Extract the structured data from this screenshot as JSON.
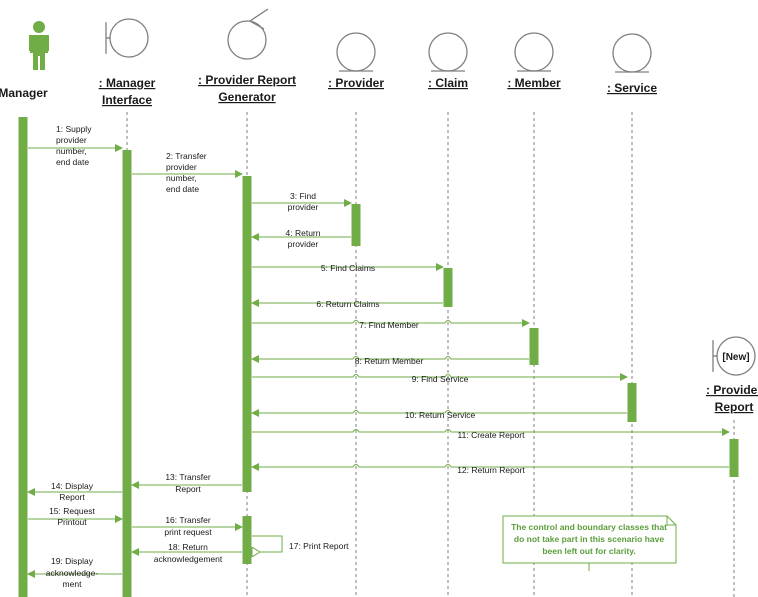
{
  "participants": [
    {
      "id": "manager",
      "kind": "actor",
      "lines": [
        "Manager"
      ],
      "underline": false
    },
    {
      "id": "manager-interface",
      "kind": "boundary",
      "lines": [
        ": Manager",
        "Interface"
      ],
      "underline": true
    },
    {
      "id": "provider-report-generator",
      "kind": "control",
      "lines": [
        ": Provider Report",
        "Generator"
      ],
      "underline": true
    },
    {
      "id": "provider",
      "kind": "entity",
      "lines": [
        ": Provider"
      ],
      "underline": true
    },
    {
      "id": "claim",
      "kind": "entity",
      "lines": [
        ": Claim"
      ],
      "underline": true
    },
    {
      "id": "member",
      "kind": "entity",
      "lines": [
        ": Member"
      ],
      "underline": true
    },
    {
      "id": "service",
      "kind": "entity",
      "lines": [
        ": Service"
      ],
      "underline": true
    },
    {
      "id": "provider-report",
      "kind": "boundary-new",
      "lines": [
        ": Provider",
        "Report"
      ],
      "underline": true,
      "tag": "[New]"
    }
  ],
  "messages": [
    {
      "n": 1,
      "lines": [
        "1: Supply",
        "provider",
        "number,",
        "end date"
      ]
    },
    {
      "n": 2,
      "lines": [
        "2: Transfer",
        "provider",
        "number,",
        "end date"
      ]
    },
    {
      "n": 3,
      "lines": [
        "3: Find",
        "provider"
      ]
    },
    {
      "n": 4,
      "lines": [
        "4: Return",
        "provider"
      ]
    },
    {
      "n": 5,
      "lines": [
        "5: Find Claims"
      ]
    },
    {
      "n": 6,
      "lines": [
        "6: Return Claims"
      ]
    },
    {
      "n": 7,
      "lines": [
        "7: Find Member"
      ]
    },
    {
      "n": 8,
      "lines": [
        "8: Return Member"
      ]
    },
    {
      "n": 9,
      "lines": [
        "9: Find Service"
      ]
    },
    {
      "n": 10,
      "lines": [
        "10: Return Service"
      ]
    },
    {
      "n": 11,
      "lines": [
        "11: Create Report"
      ]
    },
    {
      "n": 12,
      "lines": [
        "12: Return Report"
      ]
    },
    {
      "n": 13,
      "lines": [
        "13: Transfer",
        "Report"
      ]
    },
    {
      "n": 14,
      "lines": [
        "14: Display",
        "Report"
      ]
    },
    {
      "n": 15,
      "lines": [
        "15: Request",
        "Printout"
      ]
    },
    {
      "n": 16,
      "lines": [
        "16: Transfer",
        "print request"
      ]
    },
    {
      "n": 17,
      "lines": [
        "17: Print Report"
      ]
    },
    {
      "n": 18,
      "lines": [
        "18: Return",
        "acknowledgement"
      ]
    },
    {
      "n": 19,
      "lines": [
        "19: Display",
        "acknowledge-",
        "ment"
      ]
    }
  ],
  "note": {
    "lines": [
      "The control and boundary classes that",
      "do not take part in this scenario have",
      "been left out for clarity."
    ]
  },
  "colors": {
    "green": "#70ad47",
    "line": "#7f7f7f",
    "note_text": "#5a9e3a"
  }
}
